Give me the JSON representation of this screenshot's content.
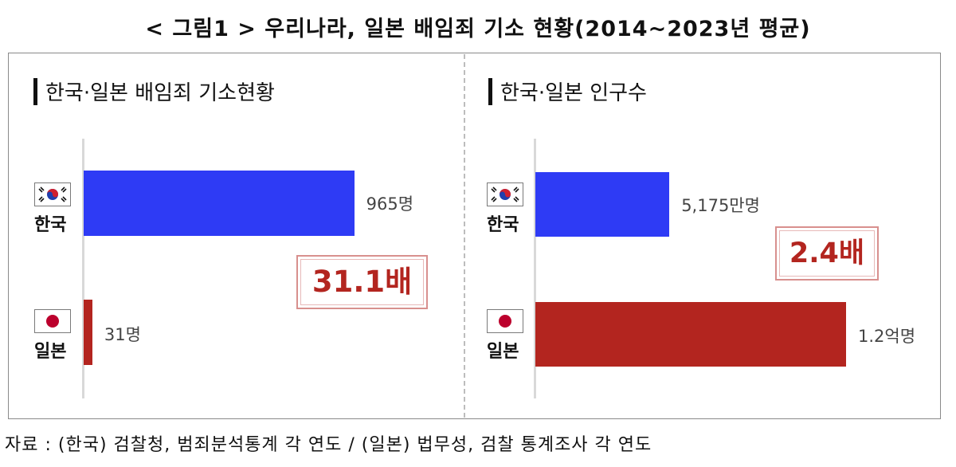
{
  "figure_title": "< 그림1 > 우리나라, 일본 배임죄 기소 현황(2014~2023년 평균)",
  "source": "자료 : (한국) 검찰청, 범죄분석통계 각 연도 / (일본) 법무성, 검찰 통계조사 각 연도",
  "colors": {
    "korea": "#2e3bf5",
    "japan": "#b3251f",
    "ratio_text": "#b3251f"
  },
  "icons": {
    "korea_flag": "korea-flag-icon",
    "japan_flag": "japan-flag-icon"
  },
  "chart_data": [
    {
      "type": "bar",
      "orientation": "horizontal",
      "title": "한국·일본 배임죄 기소현황",
      "categories": [
        "한국",
        "일본"
      ],
      "values": [
        965,
        31
      ],
      "value_labels": [
        "965명",
        "31명"
      ],
      "unit": "명",
      "xlim": [
        0,
        1000
      ],
      "ratio_label": "31.1배",
      "grid": false
    },
    {
      "type": "bar",
      "orientation": "horizontal",
      "title": "한국·일본 인구수",
      "categories": [
        "한국",
        "일본"
      ],
      "values": [
        5175,
        12000
      ],
      "value_labels": [
        "5,175만명",
        "1.2억명"
      ],
      "unit": "만명",
      "xlim": [
        0,
        12000
      ],
      "ratio_label": "2.4배",
      "grid": false
    }
  ]
}
